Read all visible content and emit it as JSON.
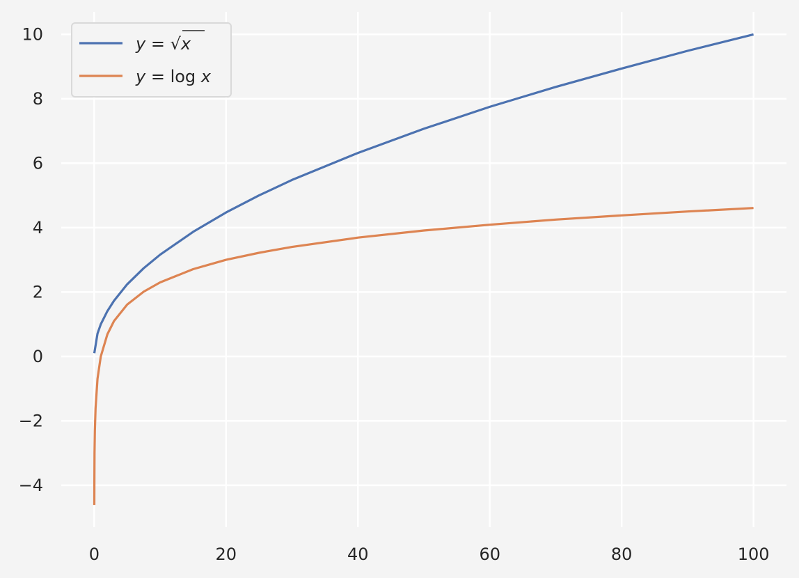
{
  "chart_data": {
    "type": "line",
    "title": "",
    "xlabel": "",
    "ylabel": "",
    "xlim": [
      -5,
      105
    ],
    "ylim": [
      -5.3,
      10.7
    ],
    "grid": true,
    "legend_position": "upper-left",
    "background_color": "#f4f4f4",
    "grid_color": "#ffffff",
    "x_ticks": [
      0,
      20,
      40,
      60,
      80,
      100
    ],
    "y_ticks": [
      -4,
      -2,
      0,
      2,
      4,
      6,
      8,
      10
    ],
    "x_tick_labels": [
      "0",
      "20",
      "40",
      "60",
      "80",
      "100"
    ],
    "y_tick_labels": [
      "−4",
      "−2",
      "0",
      "2",
      "4",
      "6",
      "8",
      "10"
    ],
    "series": [
      {
        "name": "y = √x",
        "color": "#4c72b0",
        "x": [
          0.01,
          0.5,
          1,
          2,
          3,
          5,
          7.5,
          10,
          15,
          20,
          25,
          30,
          40,
          50,
          60,
          70,
          80,
          90,
          100
        ],
        "y": [
          0.1,
          0.71,
          1.0,
          1.41,
          1.73,
          2.24,
          2.74,
          3.16,
          3.87,
          4.47,
          5.0,
          5.48,
          6.32,
          7.07,
          7.75,
          8.37,
          8.94,
          9.49,
          10.0
        ]
      },
      {
        "name": "y = log x",
        "color": "#dd8452",
        "x": [
          0.01,
          0.02,
          0.05,
          0.1,
          0.2,
          0.5,
          1,
          2,
          3,
          5,
          7.5,
          10,
          15,
          20,
          25,
          30,
          40,
          50,
          60,
          70,
          80,
          90,
          100
        ],
        "y": [
          -4.61,
          -3.91,
          -3.0,
          -2.3,
          -1.61,
          -0.69,
          0.0,
          0.69,
          1.1,
          1.61,
          2.01,
          2.3,
          2.71,
          3.0,
          3.22,
          3.4,
          3.69,
          3.91,
          4.09,
          4.25,
          4.38,
          4.5,
          4.61
        ]
      }
    ]
  },
  "legend": {
    "items": [
      {
        "var": "y",
        "eq": " = ",
        "fn": "",
        "sym": "√",
        "arg": "x",
        "color": "#4c72b0"
      },
      {
        "var": "y",
        "eq": " = ",
        "fn": "log ",
        "sym": "",
        "arg": "x",
        "color": "#dd8452"
      }
    ]
  }
}
